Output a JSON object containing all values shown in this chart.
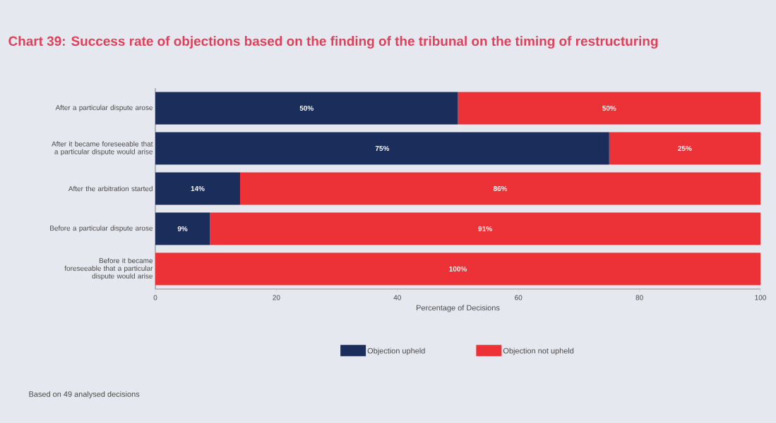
{
  "chart_data": {
    "type": "bar",
    "orientation": "horizontal",
    "stacked": true,
    "title": "Chart 39: Success rate of objections based on the finding of the tribunal on the timing of restructuring",
    "categories": [
      "After a particular dispute arose",
      "After it became foreseeable that a particular dispute would arise",
      "After the arbitration started",
      "Before a particular dispute arose",
      "Before it became foreseeable that a particular dispute would arise"
    ],
    "series": [
      {
        "name": "Objection upheld",
        "color": "#1b2d5b",
        "values": [
          50,
          75,
          14,
          9,
          0
        ],
        "value_labels": [
          "50%",
          "75%",
          "14%",
          "9%",
          null
        ]
      },
      {
        "name": "Objection not upheld",
        "color": "#ec3237",
        "values": [
          50,
          25,
          86,
          91,
          100
        ],
        "value_labels": [
          "50%",
          "25%",
          "86%",
          "91%",
          "100%"
        ]
      }
    ],
    "xlabel": "Percentage of Decisions",
    "xlim": [
      0,
      100
    ],
    "xticks": [
      0,
      20,
      40,
      60,
      80,
      100
    ],
    "legend": "bottom",
    "annotations": [
      "Based on 49 analysed decisions"
    ]
  }
}
